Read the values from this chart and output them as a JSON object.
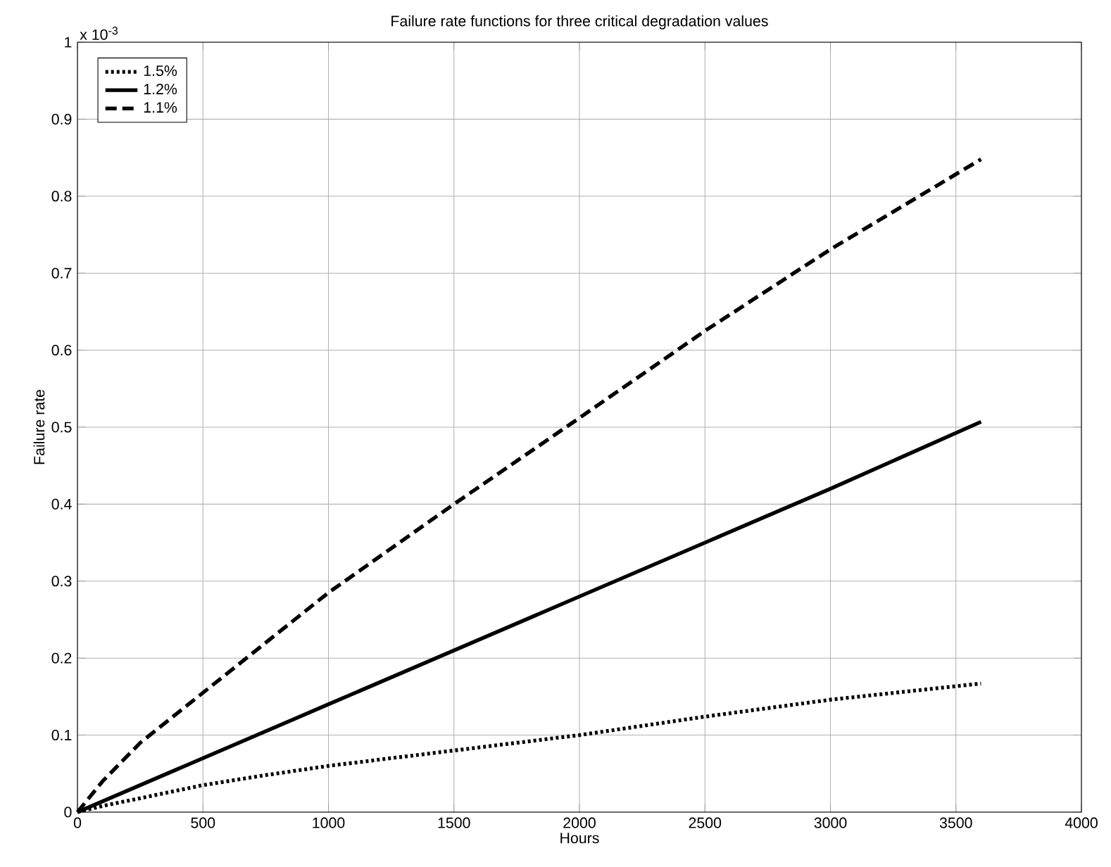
{
  "chart_data": {
    "type": "line",
    "title": "Failure rate functions for three critical degradation values",
    "xlabel": "Hours",
    "ylabel": "Failure rate",
    "annotations": [
      "x 10$^{-3}$"
    ],
    "xlim": [
      0,
      4000
    ],
    "xticks": [
      0,
      500,
      1000,
      1500,
      2000,
      2500,
      3000,
      3500,
      4000
    ],
    "ylim": [
      0,
      1
    ],
    "yticks": [
      0,
      0.1,
      0.2,
      0.3,
      0.4,
      0.5,
      0.6,
      0.7,
      0.8,
      0.9,
      1
    ],
    "grid": true,
    "legend": "top left",
    "series": [
      {
        "name": "1.5%",
        "color": "#000000",
        "line_style": "dotted",
        "x": [
          0,
          100,
          250,
          500,
          750,
          1000,
          1500,
          2000,
          2500,
          3000,
          3600
        ],
        "values": [
          0,
          0.008,
          0.018,
          0.035,
          0.048,
          0.06,
          0.08,
          0.1,
          0.124,
          0.146,
          0.167
        ]
      },
      {
        "name": "1.2%",
        "color": "#000000",
        "line_style": "solid",
        "x": [
          0,
          500,
          1000,
          1500,
          2000,
          2500,
          3000,
          3600
        ],
        "values": [
          0,
          0.07,
          0.14,
          0.21,
          0.28,
          0.35,
          0.42,
          0.507
        ]
      },
      {
        "name": "1.1%",
        "color": "#000000",
        "line_style": "dashed",
        "x": [
          0,
          100,
          250,
          500,
          1000,
          1500,
          2000,
          2500,
          3000,
          3600
        ],
        "values": [
          0,
          0.04,
          0.09,
          0.155,
          0.285,
          0.4,
          0.512,
          0.625,
          0.731,
          0.848
        ]
      }
    ]
  }
}
